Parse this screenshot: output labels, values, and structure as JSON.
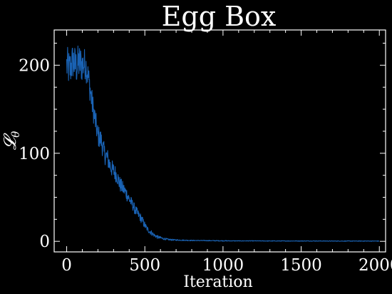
{
  "chart_data": {
    "type": "line",
    "title": "Egg Box",
    "xlabel": "Iteration",
    "ylabel": "𝓛",
    "ylabel_subscript": "θ",
    "xlim": [
      -80,
      2040
    ],
    "ylim": [
      -12,
      240
    ],
    "x_ticks": [
      0,
      500,
      1000,
      1500,
      2000
    ],
    "x_tick_labels": [
      "0",
      "500",
      "1000",
      "1500",
      "2000"
    ],
    "y_ticks": [
      0,
      100,
      200
    ],
    "y_tick_labels": [
      "0",
      "100",
      "200"
    ],
    "grid": false,
    "legend": "none",
    "series": [
      {
        "color": "#1a63b5",
        "x": [
          0,
          20,
          40,
          60,
          80,
          100,
          120,
          140,
          160,
          180,
          200,
          220,
          240,
          260,
          280,
          300,
          320,
          340,
          360,
          380,
          400,
          420,
          440,
          460,
          480,
          500,
          520,
          540,
          560,
          580,
          600,
          620,
          650,
          700,
          800,
          900,
          1000,
          1100,
          1200,
          1300,
          1400,
          1500,
          1600,
          1700,
          1800,
          1900,
          2000
        ],
        "y": [
          200,
          195,
          205,
          198,
          203,
          200,
          202,
          185,
          160,
          140,
          120,
          115,
          100,
          95,
          85,
          80,
          75,
          65,
          60,
          55,
          48,
          42,
          35,
          30,
          25,
          18,
          13,
          10,
          7,
          5,
          4,
          3,
          2,
          1.5,
          1,
          0.8,
          0.6,
          0.5,
          0.5,
          0.4,
          0.4,
          0.4,
          0.4,
          0.3,
          0.3,
          0.3,
          0.3
        ],
        "noise": [
          22,
          22,
          22,
          22,
          22,
          20,
          18,
          16,
          15,
          14,
          13,
          12,
          12,
          11,
          10,
          10,
          9,
          9,
          8,
          8,
          7,
          6,
          6,
          5,
          5,
          4,
          3,
          3,
          2,
          2,
          1.5,
          1.2,
          1,
          0.6,
          0.5,
          0.4,
          0.4,
          0.3,
          0.3,
          0.3,
          0.3,
          0.3,
          0.3,
          0.3,
          0.3,
          0.3,
          0.3
        ]
      }
    ]
  }
}
